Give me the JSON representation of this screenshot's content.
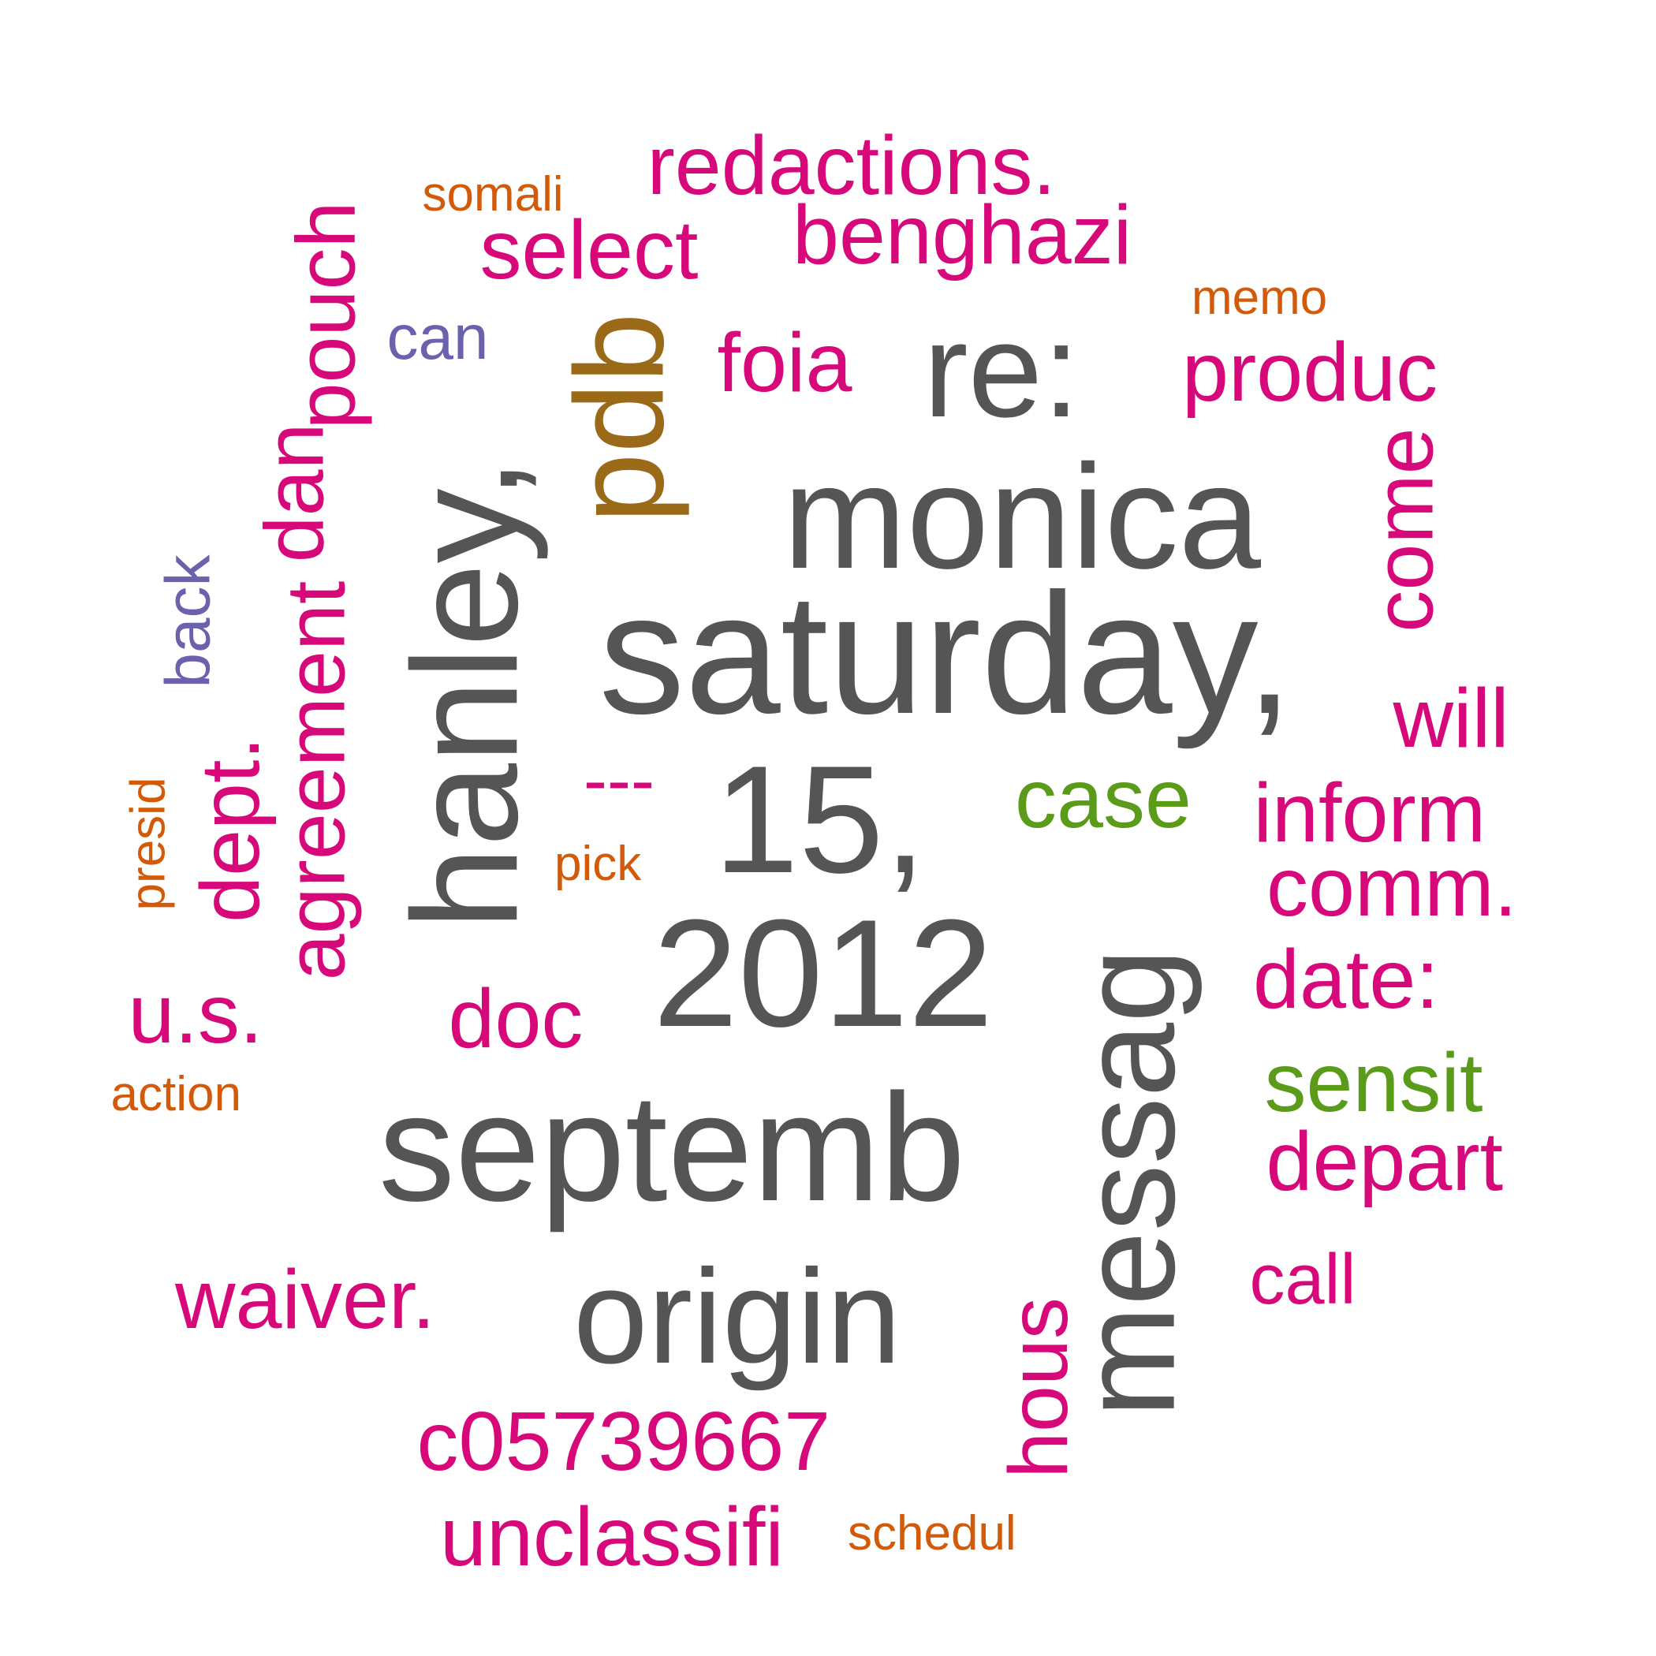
{
  "palette": {
    "gray": "#555555",
    "magenta": "#d6087a",
    "orange": "#d35a09",
    "green": "#5a9b1a",
    "brown": "#9a6a18",
    "purple": "#6a62ad"
  },
  "words": [
    {
      "text": "saturday,",
      "color": "gray",
      "weight": 10
    },
    {
      "text": "monica",
      "color": "gray",
      "weight": 9
    },
    {
      "text": "hanley,",
      "color": "gray",
      "weight": 9
    },
    {
      "text": "15,",
      "color": "gray",
      "weight": 9
    },
    {
      "text": "2012",
      "color": "gray",
      "weight": 9
    },
    {
      "text": "septemb",
      "color": "gray",
      "weight": 9
    },
    {
      "text": "origin",
      "color": "gray",
      "weight": 8
    },
    {
      "text": "re:",
      "color": "gray",
      "weight": 8
    },
    {
      "text": "messag",
      "color": "gray",
      "weight": 8
    },
    {
      "text": "pdb",
      "color": "brown",
      "weight": 7
    },
    {
      "text": "redactions.",
      "color": "magenta",
      "weight": 5
    },
    {
      "text": "benghazi",
      "color": "magenta",
      "weight": 5
    },
    {
      "text": "select",
      "color": "magenta",
      "weight": 5
    },
    {
      "text": "foia",
      "color": "magenta",
      "weight": 5
    },
    {
      "text": "produc",
      "color": "magenta",
      "weight": 5
    },
    {
      "text": "pouch",
      "color": "magenta",
      "weight": 5
    },
    {
      "text": "dan",
      "color": "magenta",
      "weight": 5
    },
    {
      "text": "agreement",
      "color": "magenta",
      "weight": 5
    },
    {
      "text": "dept.",
      "color": "magenta",
      "weight": 5
    },
    {
      "text": "u.s.",
      "color": "magenta",
      "weight": 5
    },
    {
      "text": "doc",
      "color": "magenta",
      "weight": 5
    },
    {
      "text": "waiver.",
      "color": "magenta",
      "weight": 5
    },
    {
      "text": "c05739667",
      "color": "magenta",
      "weight": 5
    },
    {
      "text": "unclassifi",
      "color": "magenta",
      "weight": 5
    },
    {
      "text": "hous",
      "color": "magenta",
      "weight": 5
    },
    {
      "text": "come",
      "color": "magenta",
      "weight": 5
    },
    {
      "text": "will",
      "color": "magenta",
      "weight": 5
    },
    {
      "text": "inform",
      "color": "magenta",
      "weight": 5
    },
    {
      "text": "comm.",
      "color": "magenta",
      "weight": 5
    },
    {
      "text": "date:",
      "color": "magenta",
      "weight": 5
    },
    {
      "text": "depart",
      "color": "magenta",
      "weight": 5
    },
    {
      "text": "call",
      "color": "magenta",
      "weight": 4
    },
    {
      "text": "---",
      "color": "magenta",
      "weight": 4
    },
    {
      "text": "case",
      "color": "green",
      "weight": 5
    },
    {
      "text": "sensit",
      "color": "green",
      "weight": 5
    },
    {
      "text": "can",
      "color": "purple",
      "weight": 3
    },
    {
      "text": "back",
      "color": "purple",
      "weight": 3
    },
    {
      "text": "somali",
      "color": "orange",
      "weight": 3
    },
    {
      "text": "memo",
      "color": "orange",
      "weight": 3
    },
    {
      "text": "presid",
      "color": "orange",
      "weight": 3
    },
    {
      "text": "pick",
      "color": "orange",
      "weight": 3
    },
    {
      "text": "action",
      "color": "orange",
      "weight": 3
    },
    {
      "text": "schedul",
      "color": "orange",
      "weight": 3
    }
  ]
}
